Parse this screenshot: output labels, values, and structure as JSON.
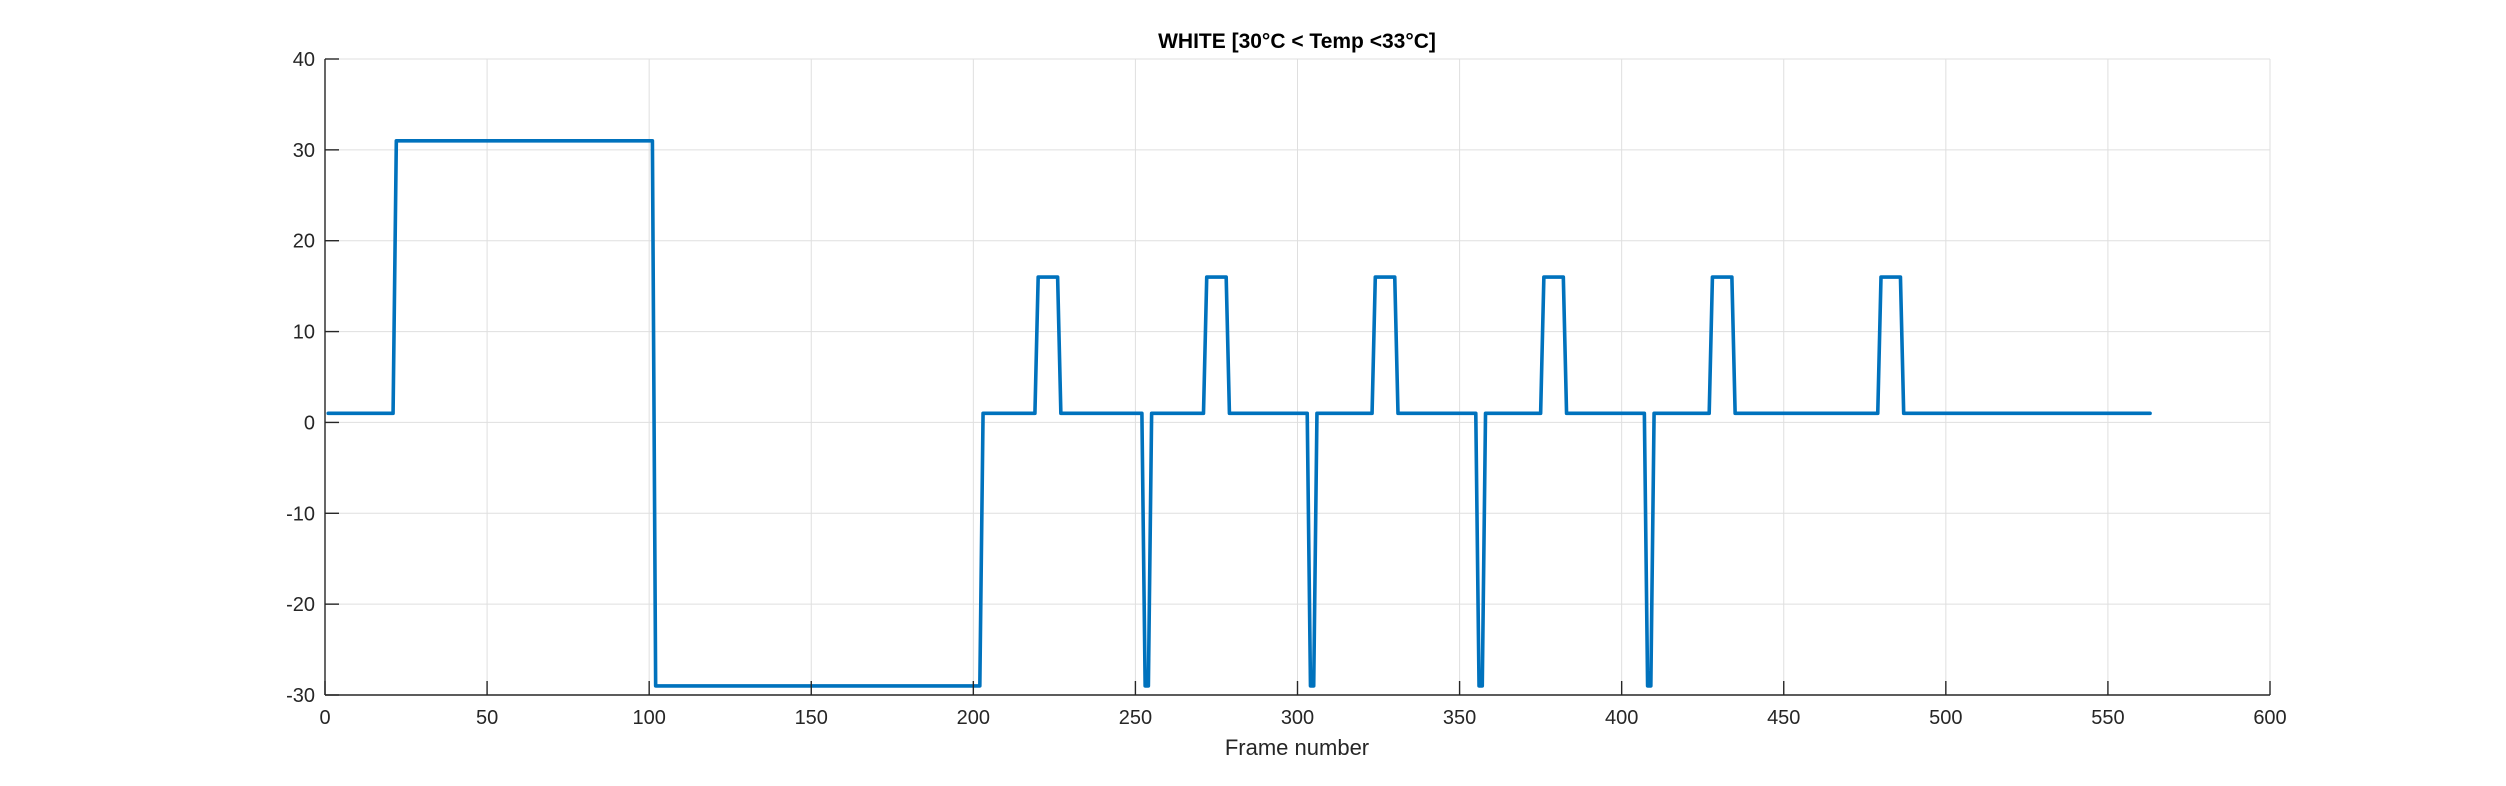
{
  "chart_data": {
    "type": "line",
    "title": "WHITE [30°C < Temp <33°C]",
    "xlabel": "Frame number",
    "ylabel": "",
    "xlim": [
      0,
      600
    ],
    "ylim": [
      -30,
      40
    ],
    "xticks": [
      0,
      50,
      100,
      150,
      200,
      250,
      300,
      350,
      400,
      450,
      500,
      550,
      600
    ],
    "yticks": [
      -30,
      -20,
      -10,
      0,
      10,
      20,
      30,
      40
    ],
    "grid": true,
    "series": [
      {
        "color": "#0072BD",
        "x": [
          1,
          21,
          22,
          100,
          101,
          102,
          201,
          202,
          203,
          219,
          220,
          226,
          227,
          252,
          253,
          254,
          255,
          271,
          272,
          278,
          279,
          303,
          304,
          305,
          306,
          323,
          324,
          330,
          331,
          355,
          356,
          357,
          358,
          375,
          376,
          382,
          383,
          407,
          408,
          409,
          410,
          427,
          428,
          434,
          435,
          479,
          480,
          486,
          487,
          563
        ],
        "y": [
          1,
          1,
          31,
          31,
          31,
          -29,
          -29,
          -29,
          1,
          1,
          16,
          16,
          1,
          1,
          -29,
          -29,
          1,
          1,
          16,
          16,
          1,
          1,
          -29,
          -29,
          1,
          1,
          16,
          16,
          1,
          1,
          -29,
          -29,
          1,
          1,
          16,
          16,
          1,
          1,
          -29,
          -29,
          1,
          1,
          16,
          16,
          1,
          1,
          16,
          16,
          1,
          1
        ]
      }
    ]
  }
}
